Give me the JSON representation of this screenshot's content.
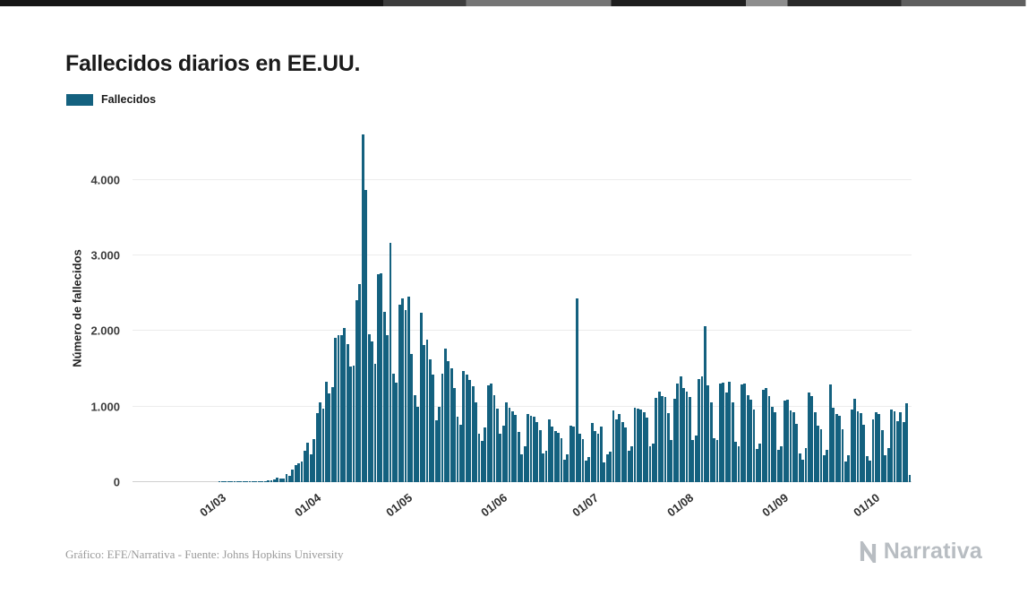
{
  "page": {
    "title": "Fallecidos diarios en EE.UU.",
    "footer": "Gráfico: EFE/Narrativa - Fuente: Johns Hopkins University",
    "brand": "Narrativa"
  },
  "legend": {
    "label": "Fallecidos"
  },
  "chart_data": {
    "type": "bar",
    "title": "Fallecidos diarios en EE.UU.",
    "series_name": "Fallecidos",
    "ylabel": "Número de fallecidos",
    "xlabel": "",
    "bar_color": "#14617F",
    "grid": true,
    "legend_position": "top-left",
    "ylim": [
      0,
      4600
    ],
    "y_ticks": [
      {
        "value": 0,
        "label": "0"
      },
      {
        "value": 1000,
        "label": "1.000"
      },
      {
        "value": 2000,
        "label": "2.000"
      },
      {
        "value": 3000,
        "label": "3.000"
      },
      {
        "value": 4000,
        "label": "4.000"
      }
    ],
    "x_ticks": [
      {
        "index": 29,
        "label": "01/03"
      },
      {
        "index": 60,
        "label": "01/04"
      },
      {
        "index": 90,
        "label": "01/05"
      },
      {
        "index": 121,
        "label": "01/06"
      },
      {
        "index": 151,
        "label": "01/07"
      },
      {
        "index": 182,
        "label": "01/08"
      },
      {
        "index": 213,
        "label": "01/09"
      },
      {
        "index": 243,
        "label": "01/10"
      }
    ],
    "values": [
      0,
      0,
      0,
      0,
      0,
      0,
      0,
      0,
      0,
      0,
      0,
      0,
      0,
      0,
      0,
      0,
      0,
      0,
      0,
      0,
      0,
      0,
      0,
      0,
      0,
      0,
      0,
      0,
      1,
      1,
      2,
      4,
      3,
      2,
      3,
      4,
      4,
      3,
      4,
      2,
      8,
      6,
      10,
      11,
      18,
      23,
      41,
      57,
      49,
      46,
      111,
      80,
      164,
      225,
      247,
      268,
      411,
      525,
      363,
      572,
      912,
      1050,
      970,
      1330,
      1170,
      1260,
      1910,
      1940,
      1950,
      2040,
      1830,
      1530,
      1540,
      2410,
      2620,
      4600,
      3870,
      1960,
      1860,
      1560,
      2750,
      2760,
      2250,
      1950,
      3170,
      1430,
      1320,
      2350,
      2430,
      2280,
      2450,
      1690,
      1150,
      1000,
      2240,
      1810,
      1880,
      1630,
      1420,
      820,
      1000,
      1430,
      1770,
      1600,
      1500,
      1240,
      870,
      760,
      1470,
      1420,
      1350,
      1270,
      1060,
      640,
      540,
      720,
      1280,
      1300,
      1150,
      970,
      640,
      750,
      1060,
      990,
      940,
      890,
      670,
      370,
      470,
      900,
      880,
      870,
      800,
      690,
      380,
      420,
      830,
      730,
      680,
      650,
      580,
      300,
      370,
      750,
      740,
      2430,
      640,
      570,
      290,
      330,
      780,
      680,
      640,
      730,
      260,
      370,
      400,
      950,
      830,
      900,
      800,
      720,
      420,
      480,
      980,
      970,
      960,
      930,
      850,
      470,
      510,
      1120,
      1200,
      1140,
      1130,
      910,
      560,
      1100,
      1300,
      1400,
      1250,
      1200,
      1130,
      560,
      620,
      1360,
      1400,
      2060,
      1280,
      1060,
      580,
      560,
      1300,
      1320,
      1180,
      1330,
      1050,
      530,
      470,
      1290,
      1300,
      1150,
      1090,
      960,
      440,
      510,
      1220,
      1250,
      1140,
      1000,
      920,
      430,
      480,
      1080,
      1090,
      950,
      920,
      770,
      380,
      300,
      450,
      1180,
      1140,
      920,
      750,
      700,
      350,
      430,
      1290,
      990,
      900,
      880,
      700,
      270,
      350,
      960,
      1100,
      940,
      910,
      760,
      340,
      290,
      830,
      930,
      900,
      690,
      350,
      450,
      960,
      940,
      810,
      920,
      790,
      1040,
      100
    ]
  }
}
